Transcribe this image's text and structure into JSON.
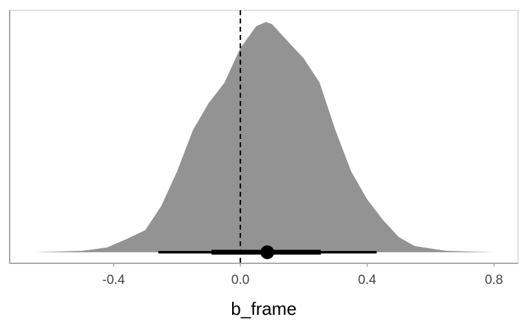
{
  "chart_data": {
    "type": "density",
    "xlabel": "b_frame",
    "series": [
      {
        "color": "#939393",
        "x": [
          -0.654,
          -0.5,
          -0.42,
          -0.36,
          -0.3,
          -0.25,
          -0.2,
          -0.15,
          -0.1,
          -0.05,
          0.0,
          0.05,
          0.08,
          0.1,
          0.15,
          0.2,
          0.25,
          0.3,
          0.35,
          0.4,
          0.45,
          0.5,
          0.55,
          0.65,
          0.8
        ],
        "values": [
          0,
          0.006,
          0.021,
          0.057,
          0.096,
          0.2,
          0.35,
          0.53,
          0.648,
          0.737,
          0.887,
          0.982,
          1.0,
          0.991,
          0.916,
          0.842,
          0.737,
          0.53,
          0.35,
          0.23,
          0.14,
          0.066,
          0.027,
          0.006,
          0
        ]
      }
    ],
    "interval": {
      "color": "#000000",
      "point": 0.085,
      "inner": [
        -0.091,
        0.254
      ],
      "outer": [
        -0.259,
        0.43
      ]
    },
    "refline": {
      "x": 0,
      "color": "#000000"
    },
    "xlim": [
      -0.728,
      0.876
    ],
    "ylim": [
      -0.048,
      1.051
    ],
    "xticks": [
      -0.4,
      {
        "value": 0,
        "label": "0.0"
      },
      0.4,
      0.8
    ]
  }
}
